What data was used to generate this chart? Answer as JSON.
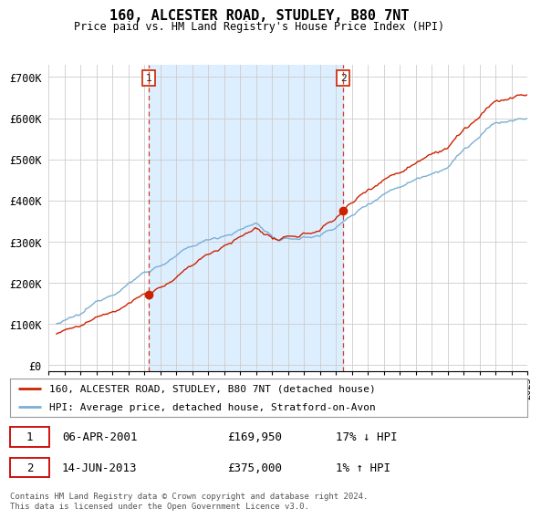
{
  "title": "160, ALCESTER ROAD, STUDLEY, B80 7NT",
  "subtitle": "Price paid vs. HM Land Registry's House Price Index (HPI)",
  "ylabel_ticks": [
    "£0",
    "£100K",
    "£200K",
    "£300K",
    "£400K",
    "£500K",
    "£600K",
    "£700K"
  ],
  "ytick_values": [
    0,
    100000,
    200000,
    300000,
    400000,
    500000,
    600000,
    700000
  ],
  "ylim": [
    -15000,
    730000
  ],
  "xlim_start": 1995.5,
  "xlim_end": 2025.0,
  "purchase1_date": 2001.27,
  "purchase1_price": 169950,
  "purchase2_date": 2013.45,
  "purchase2_price": 375000,
  "red_color": "#cc2200",
  "blue_color": "#7aafd4",
  "shade_color": "#ddeeff",
  "vline_color": "#cc2200",
  "legend_label_red": "160, ALCESTER ROAD, STUDLEY, B80 7NT (detached house)",
  "legend_label_blue": "HPI: Average price, detached house, Stratford-on-Avon",
  "table_row1": [
    "1",
    "06-APR-2001",
    "£169,950",
    "17% ↓ HPI"
  ],
  "table_row2": [
    "2",
    "14-JUN-2013",
    "£375,000",
    "1% ↑ HPI"
  ],
  "footer": "Contains HM Land Registry data © Crown copyright and database right 2024.\nThis data is licensed under the Open Government Licence v3.0.",
  "background_color": "#ffffff",
  "grid_color": "#cccccc"
}
